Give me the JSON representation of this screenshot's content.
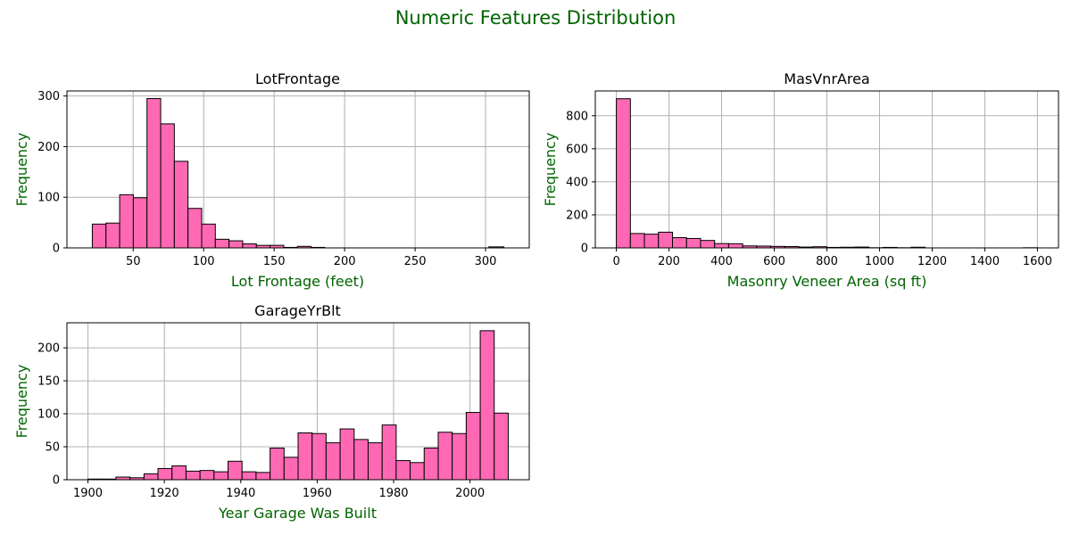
{
  "figure": {
    "suptitle": "Numeric Features Distribution",
    "title_color": "#006400",
    "bar_color": "#ff69b4",
    "edge_color": "#000000",
    "grid_color": "#b0b0b0"
  },
  "chart_data": [
    {
      "type": "bar",
      "id": "lotfrontage",
      "title": "LotFrontage",
      "xlabel": "Lot Frontage (feet)",
      "ylabel": "Frequency",
      "grid": true,
      "bin_edges": [
        21,
        30.7,
        40.4,
        50.1,
        59.8,
        69.5,
        79.2,
        88.9,
        98.6,
        108.3,
        118,
        127.7,
        137.4,
        147.1,
        156.8,
        166.5,
        176.2,
        185.9,
        195.6,
        205.3,
        215,
        224.7,
        234.4,
        244.1,
        253.8,
        263.5,
        273.2,
        282.9,
        292.6,
        302.3,
        313
      ],
      "values": [
        47,
        49,
        105,
        99,
        295,
        245,
        171,
        78,
        47,
        17,
        14,
        8,
        5,
        5,
        1,
        3,
        1,
        0,
        0,
        0,
        0,
        0,
        0,
        0,
        0,
        0,
        0,
        0,
        0,
        2
      ],
      "xlim": [
        3,
        331
      ],
      "ylim": [
        0,
        310
      ],
      "xticks": [
        50,
        100,
        150,
        200,
        250,
        300
      ],
      "xtick_labels": [
        "50",
        "100",
        "150",
        "200",
        "250",
        "300"
      ],
      "yticks": [
        0,
        100,
        200,
        300
      ],
      "ytick_labels": [
        "0",
        "100",
        "200",
        "300"
      ]
    },
    {
      "type": "bar",
      "id": "masvnrarea",
      "title": "MasVnrArea",
      "xlabel": "Masonry Veneer Area (sq ft)",
      "ylabel": "Frequency",
      "grid": true,
      "bin_edges": [
        0,
        53.33,
        106.67,
        160,
        213.33,
        266.67,
        320,
        373.33,
        426.67,
        480,
        533.33,
        586.67,
        640,
        693.33,
        746.67,
        800,
        853.33,
        906.67,
        960,
        1013.33,
        1066.67,
        1120,
        1173.33,
        1226.67,
        1280,
        1333.33,
        1386.67,
        1440,
        1493.33,
        1546.67,
        1600
      ],
      "values": [
        903,
        87,
        83,
        95,
        62,
        57,
        45,
        26,
        25,
        12,
        11,
        9,
        8,
        5,
        7,
        3,
        4,
        5,
        1,
        3,
        1,
        4,
        0,
        0,
        0,
        0,
        0,
        0,
        0,
        1
      ],
      "xlim": [
        -80,
        1680
      ],
      "ylim": [
        0,
        950
      ],
      "xticks": [
        0,
        200,
        400,
        600,
        800,
        1000,
        1200,
        1400,
        1600
      ],
      "xtick_labels": [
        "0",
        "200",
        "400",
        "600",
        "800",
        "1000",
        "1200",
        "1400",
        "1600"
      ],
      "yticks": [
        0,
        200,
        400,
        600,
        800
      ],
      "ytick_labels": [
        "0",
        "200",
        "400",
        "600",
        "800"
      ]
    },
    {
      "type": "bar",
      "id": "garageyrblt",
      "title": "GarageYrBlt",
      "xlabel": "Year Garage Was Built",
      "ylabel": "Frequency",
      "grid": true,
      "bin_edges": [
        1900,
        1903.67,
        1907.33,
        1911,
        1914.67,
        1918.33,
        1922,
        1925.67,
        1929.33,
        1933,
        1936.67,
        1940.33,
        1944,
        1947.67,
        1951.33,
        1955,
        1958.67,
        1962.33,
        1966,
        1969.67,
        1973.33,
        1977,
        1980.67,
        1984.33,
        1988,
        1991.67,
        1995.33,
        1999,
        2002.67,
        2006.33,
        2010
      ],
      "values": [
        1,
        1,
        4,
        3,
        9,
        17,
        21,
        13,
        14,
        12,
        28,
        12,
        11,
        48,
        34,
        71,
        70,
        56,
        77,
        61,
        56,
        83,
        29,
        26,
        48,
        72,
        70,
        102,
        226,
        101
      ],
      "xlim": [
        1894.5,
        2015.5
      ],
      "ylim": [
        0,
        238
      ],
      "xticks": [
        1900,
        1920,
        1940,
        1960,
        1980,
        2000
      ],
      "xtick_labels": [
        "1900",
        "1920",
        "1940",
        "1960",
        "1980",
        "2000"
      ],
      "yticks": [
        0,
        50,
        100,
        150,
        200
      ],
      "ytick_labels": [
        "0",
        "50",
        "100",
        "150",
        "200"
      ]
    }
  ]
}
